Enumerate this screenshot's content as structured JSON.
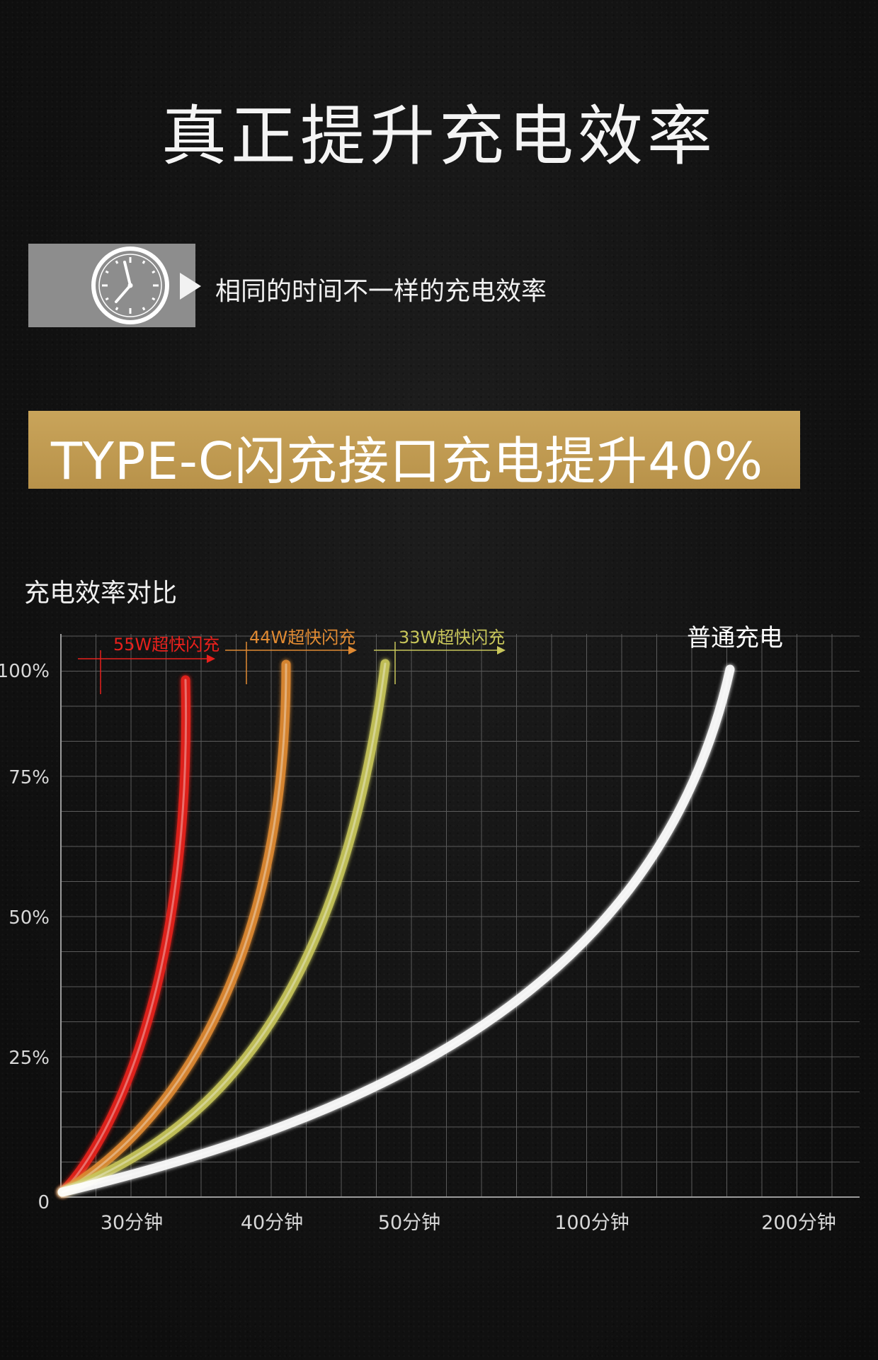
{
  "title": "真正提升充电效率",
  "subtitle": "相同的时间不一样的充电效率",
  "banner": "TYPE-C闪充接口充电提升40%",
  "icons": {
    "clock": "clock-icon",
    "arrow": "play-arrow-icon"
  },
  "colors": {
    "gold": "#c19b52",
    "red": "#e8201c",
    "orange": "#e08a32",
    "olive": "#c8c65a",
    "white": "#ffffff"
  },
  "chart_data": {
    "type": "line",
    "title": "充电效率对比",
    "xlabel": "",
    "ylabel": "",
    "x_ticks": [
      "30分钟",
      "40分钟",
      "50分钟",
      "100分钟",
      "200分钟"
    ],
    "y_ticks": [
      "0",
      "25%",
      "50%",
      "75%",
      "100%"
    ],
    "ylim": [
      0,
      100
    ],
    "grid": true,
    "series": [
      {
        "name": "55W超快闪充",
        "color": "#e8201c",
        "end_x": "35分钟",
        "end_y": 98
      },
      {
        "name": "44W超快闪充",
        "color": "#e08a32",
        "end_x": "42分钟",
        "end_y": 101
      },
      {
        "name": "33W超快闪充",
        "color": "#c8c65a",
        "end_x": "49分钟",
        "end_y": 101
      },
      {
        "name": "普通充电",
        "color": "#ffffff",
        "end_x": "170分钟",
        "end_y": 100
      }
    ]
  }
}
